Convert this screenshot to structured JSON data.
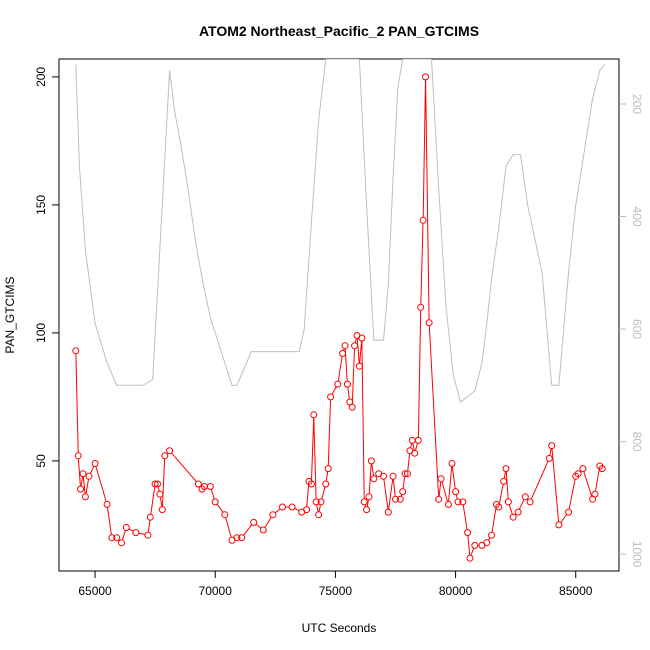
{
  "chart_data": {
    "type": "line",
    "title": "ATOM2 Northeast_Pacific_2 PAN_GTCIMS",
    "xlabel": "UTC Seconds",
    "ylabel": "PAN_GTCIMS",
    "xlim": [
      63500,
      86800
    ],
    "ylim": [
      7,
      207
    ],
    "xticks": [
      65000,
      70000,
      75000,
      80000,
      85000
    ],
    "xtick_labels": [
      "65000",
      "70000",
      "75000",
      "80000",
      "85000"
    ],
    "yticks": [
      50,
      100,
      150,
      200
    ],
    "ytick_labels": [
      "50",
      "100",
      "150",
      "200"
    ],
    "y2lim": [
      1030,
      120
    ],
    "y2ticks": [
      200,
      400,
      600,
      800,
      1000
    ],
    "y2tick_labels": [
      "200",
      "400",
      "600",
      "800",
      "1000"
    ],
    "grid": false,
    "colors": {
      "series": "#ff0000",
      "altitude": "#bebebe",
      "axis": "#000000",
      "secondary_axis": "#bdbdbd"
    },
    "series": [
      {
        "color": "#ff0000",
        "markers": "open-circle",
        "x": [
          64200,
          64300,
          64400,
          64500,
          64600,
          64750,
          65000,
          65500,
          65700,
          65900,
          66100,
          66300,
          66700,
          67200,
          67300,
          67500,
          67600,
          67700,
          67800,
          67900,
          68100,
          69300,
          69450,
          69550,
          69800,
          70000,
          70400,
          70700,
          70900,
          71100,
          71600,
          72000,
          72400,
          72800,
          73200,
          73600,
          73800,
          73900,
          74000,
          74100,
          74200,
          74300,
          74400,
          74600,
          74700,
          74800,
          75100,
          75300,
          75400,
          75500,
          75600,
          75700,
          75800,
          75900,
          76000,
          76100,
          76200,
          76300,
          76400,
          76500,
          76600,
          76800,
          77000,
          77200,
          77400,
          77500,
          77700,
          77800,
          77900,
          78000,
          78100,
          78200,
          78300,
          78450,
          78550,
          78650,
          78750,
          78900,
          79300,
          79400,
          79700,
          79850,
          80000,
          80100,
          80300,
          80500,
          80600,
          80800,
          81100,
          81300,
          81500,
          81700,
          81800,
          82000,
          82100,
          82200,
          82400,
          82600,
          82900,
          83100,
          83900,
          84000,
          84300,
          84700,
          85000,
          85100,
          85300,
          85700,
          85800,
          86000,
          86100
        ],
        "y": [
          93,
          52,
          39,
          45,
          36,
          44,
          49,
          33,
          20,
          20,
          18,
          24,
          22,
          21,
          28,
          41,
          41,
          37,
          31,
          52,
          54,
          41,
          39,
          40,
          40,
          34,
          29,
          19,
          20,
          20,
          26,
          23,
          29,
          32,
          32,
          30,
          31,
          42,
          41,
          68,
          34,
          29,
          34,
          41,
          47,
          75,
          80,
          92,
          95,
          80,
          73,
          71,
          95,
          99,
          87,
          98,
          34,
          31,
          36,
          50,
          43,
          45,
          44,
          30,
          44,
          35,
          35,
          38,
          45,
          45,
          54,
          58,
          53,
          58,
          110,
          144,
          200,
          104,
          35,
          43,
          33,
          49,
          38,
          34,
          34,
          22,
          12,
          17,
          17,
          18,
          21,
          33,
          32,
          42,
          47,
          34,
          28,
          30,
          36,
          34,
          51,
          56,
          25,
          30,
          44,
          45,
          47,
          35,
          37,
          48,
          47
        ]
      },
      {
        "color": "#bebebe",
        "axis": "secondary",
        "x": [
          64200,
          64350,
          64600,
          65000,
          65500,
          65900,
          66500,
          67000,
          67400,
          68100,
          68300,
          68600,
          68900,
          69200,
          69500,
          69800,
          70100,
          70400,
          70700,
          70900,
          71200,
          71500,
          72000,
          72500,
          73000,
          73500,
          73700,
          74000,
          74300,
          74600,
          74900,
          75200,
          75400,
          75600,
          75800,
          76000,
          76300,
          76600,
          76700,
          77000,
          77200,
          77400,
          77600,
          77800,
          78000,
          78200,
          78400,
          78500,
          78600,
          78700,
          79000,
          79300,
          79600,
          79900,
          80200,
          80500,
          80800,
          81100,
          81300,
          81500,
          81800,
          82100,
          82400,
          82700,
          83000,
          83300,
          83600,
          84000,
          84300,
          84500,
          84700,
          85000,
          85300,
          85700,
          86000,
          86200
        ],
        "y": [
          130,
          310,
          460,
          590,
          660,
          700,
          700,
          700,
          690,
          140,
          210,
          280,
          360,
          450,
          520,
          580,
          620,
          660,
          700,
          700,
          670,
          640,
          640,
          640,
          640,
          640,
          600,
          410,
          230,
          120,
          120,
          120,
          120,
          120,
          120,
          120,
          380,
          620,
          620,
          620,
          520,
          330,
          170,
          120,
          120,
          120,
          120,
          120,
          120,
          120,
          120,
          350,
          560,
          680,
          730,
          720,
          710,
          660,
          590,
          510,
          420,
          310,
          290,
          290,
          380,
          440,
          500,
          700,
          700,
          600,
          500,
          380,
          300,
          190,
          140,
          130
        ]
      }
    ]
  }
}
